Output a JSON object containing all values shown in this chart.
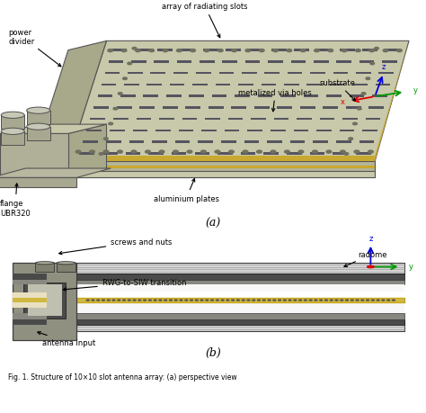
{
  "fig_width": 4.74,
  "fig_height": 4.6,
  "dpi": 100,
  "bg_color": "#ffffff",
  "caption_a": "(a)",
  "caption_b": "(b)",
  "bottom_text": "Fig. 1. Structure of 10×10 slot antenna array: (a) perspective view",
  "plate_top_color": "#c8c8aa",
  "plate_front_color": "#b4b496",
  "plate_left_color": "#a8a88a",
  "edge_color": "#555555",
  "gold_color": "#c8a830",
  "flange_color": "#b0b098",
  "slot_color": "#555560",
  "via_dot_color": "#707060",
  "connector_top_color": "#c0c0b0",
  "connector_body_color": "#a8a890",
  "axis_z_color": "#0000dd",
  "axis_y_color": "#009900",
  "axis_x_color": "#dd0000",
  "panel_b_outer_color": "#d8d8d8",
  "panel_b_dark_color": "#555555",
  "panel_b_mid_color": "#888880",
  "panel_b_gold": "#d0b840",
  "panel_b_white": "#ffffff",
  "panel_b_flange_color": "#888878"
}
